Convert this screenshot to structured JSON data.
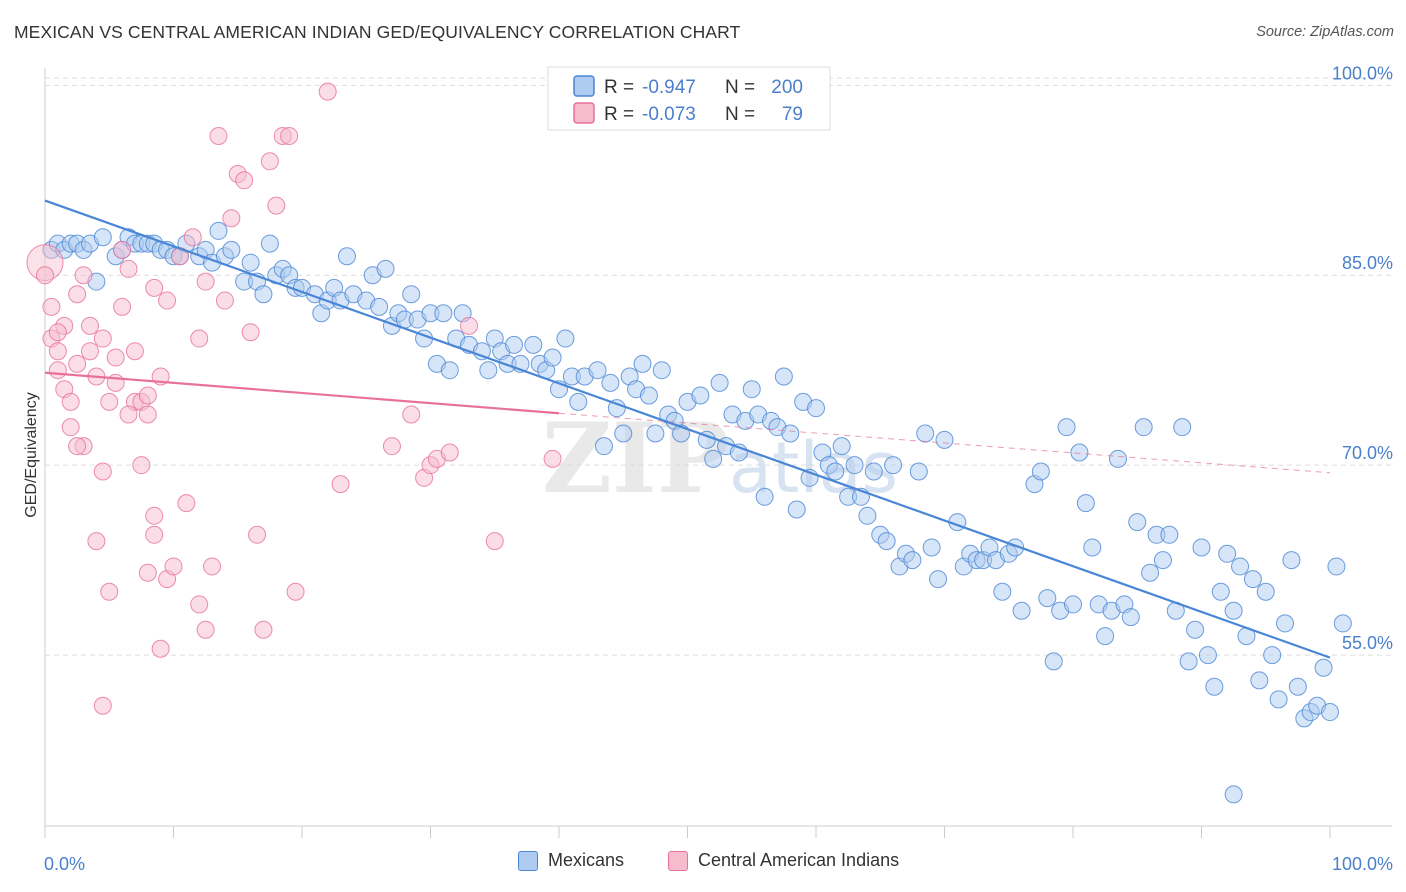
{
  "title": "MEXICAN VS CENTRAL AMERICAN INDIAN GED/EQUIVALENCY CORRELATION CHART",
  "source": "Source: ZipAtlas.com",
  "watermark": "ZIPatlas",
  "colors": {
    "blue": "#4a86d6",
    "blue_fill": "#aecbf0",
    "pink": "#e8719a",
    "pink_fill": "#f6bccd",
    "axis_text": "#4a7fcb",
    "grid": "#dddddd"
  },
  "legend_top": [
    {
      "series": "Mexicans",
      "r_label": "R =",
      "r_value": "-0.947",
      "n_label": "N =",
      "n_value": "200"
    },
    {
      "series": "Central American Indians",
      "r_label": "R =",
      "r_value": "-0.073",
      "n_label": "N =",
      "n_value": "79"
    }
  ],
  "chart_data": {
    "type": "scatter",
    "title": "MEXICAN VS CENTRAL AMERICAN INDIAN GED/EQUIVALENCY CORRELATION CHART",
    "xlabel": "",
    "ylabel": "GED/Equivalency",
    "xlim": [
      0,
      100
    ],
    "ylim": [
      41.5,
      102
    ],
    "x_tick_labels": [
      "0.0%",
      "100.0%"
    ],
    "y_ticks": [
      55,
      70,
      85,
      100
    ],
    "y_tick_labels": [
      "55.0%",
      "70.0%",
      "85.0%",
      "100.0%"
    ],
    "grid": "horizontal dashed",
    "legend_placement": "top-center and bottom",
    "series": [
      {
        "name": "Mexicans",
        "color": "#4a86d6",
        "trend": {
          "x": [
            0,
            100
          ],
          "y": [
            90.9,
            54.8
          ]
        },
        "points": [
          [
            0.5,
            87
          ],
          [
            1,
            87.5
          ],
          [
            1.5,
            87
          ],
          [
            2,
            87.5
          ],
          [
            2.5,
            87.5
          ],
          [
            3,
            87
          ],
          [
            3.5,
            87.5
          ],
          [
            4,
            84.5
          ],
          [
            4.5,
            88
          ],
          [
            5.5,
            86.5
          ],
          [
            6,
            87
          ],
          [
            6.5,
            88
          ],
          [
            7,
            87.5
          ],
          [
            7.5,
            87.5
          ],
          [
            8,
            87.5
          ],
          [
            8.5,
            87.5
          ],
          [
            9,
            87
          ],
          [
            9.5,
            87
          ],
          [
            10,
            86.5
          ],
          [
            10.5,
            86.5
          ],
          [
            11,
            87.5
          ],
          [
            12,
            86.5
          ],
          [
            12.5,
            87
          ],
          [
            13,
            86
          ],
          [
            13.5,
            88.5
          ],
          [
            14,
            86.5
          ],
          [
            14.5,
            87
          ],
          [
            15.5,
            84.5
          ],
          [
            16,
            86
          ],
          [
            16.5,
            84.5
          ],
          [
            17,
            83.5
          ],
          [
            17.5,
            87.5
          ],
          [
            18,
            85
          ],
          [
            18.5,
            85.5
          ],
          [
            19,
            85
          ],
          [
            19.5,
            84
          ],
          [
            20,
            84
          ],
          [
            21,
            83.5
          ],
          [
            21.5,
            82
          ],
          [
            22,
            83
          ],
          [
            22.5,
            84
          ],
          [
            23,
            83
          ],
          [
            23.5,
            86.5
          ],
          [
            24,
            83.5
          ],
          [
            25,
            83
          ],
          [
            25.5,
            85
          ],
          [
            26,
            82.5
          ],
          [
            26.5,
            85.5
          ],
          [
            27,
            81
          ],
          [
            27.5,
            82
          ],
          [
            28,
            81.5
          ],
          [
            28.5,
            83.5
          ],
          [
            29,
            81.5
          ],
          [
            29.5,
            80
          ],
          [
            30,
            82
          ],
          [
            30.5,
            78
          ],
          [
            31,
            82
          ],
          [
            31.5,
            77.5
          ],
          [
            32,
            80
          ],
          [
            32.5,
            82
          ],
          [
            33,
            79.5
          ],
          [
            34,
            79
          ],
          [
            34.5,
            77.5
          ],
          [
            35,
            80
          ],
          [
            35.5,
            79
          ],
          [
            36,
            78
          ],
          [
            36.5,
            79.5
          ],
          [
            37,
            78
          ],
          [
            38,
            79.5
          ],
          [
            38.5,
            78
          ],
          [
            39,
            77.5
          ],
          [
            39.5,
            78.5
          ],
          [
            40,
            76
          ],
          [
            40.5,
            80
          ],
          [
            41,
            77
          ],
          [
            41.5,
            75
          ],
          [
            42,
            77
          ],
          [
            43,
            77.5
          ],
          [
            43.5,
            71.5
          ],
          [
            44,
            76.5
          ],
          [
            44.5,
            74.5
          ],
          [
            45,
            72.5
          ],
          [
            45.5,
            77
          ],
          [
            46,
            76
          ],
          [
            46.5,
            78
          ],
          [
            47,
            75.5
          ],
          [
            47.5,
            72.5
          ],
          [
            48,
            77.5
          ],
          [
            48.5,
            74
          ],
          [
            49,
            73.5
          ],
          [
            49.5,
            72.5
          ],
          [
            50,
            75
          ],
          [
            51,
            75.5
          ],
          [
            51.5,
            72
          ],
          [
            52,
            70.5
          ],
          [
            52.5,
            76.5
          ],
          [
            53,
            71.5
          ],
          [
            53.5,
            74
          ],
          [
            54,
            71
          ],
          [
            54.5,
            73.5
          ],
          [
            55,
            76
          ],
          [
            55.5,
            74
          ],
          [
            56,
            67.5
          ],
          [
            56.5,
            73.5
          ],
          [
            57,
            73
          ],
          [
            57.5,
            77
          ],
          [
            58,
            72.5
          ],
          [
            58.5,
            66.5
          ],
          [
            59,
            75
          ],
          [
            59.5,
            69
          ],
          [
            60,
            74.5
          ],
          [
            60.5,
            71
          ],
          [
            61,
            70
          ],
          [
            61.5,
            69.5
          ],
          [
            62,
            71.5
          ],
          [
            62.5,
            67.5
          ],
          [
            63,
            70
          ],
          [
            63.5,
            67.5
          ],
          [
            64,
            66
          ],
          [
            64.5,
            69.5
          ],
          [
            65,
            64.5
          ],
          [
            65.5,
            64
          ],
          [
            66,
            70
          ],
          [
            66.5,
            62
          ],
          [
            67,
            63
          ],
          [
            67.5,
            62.5
          ],
          [
            68,
            69.5
          ],
          [
            68.5,
            72.5
          ],
          [
            69,
            63.5
          ],
          [
            69.5,
            61
          ],
          [
            70,
            72
          ],
          [
            71,
            65.5
          ],
          [
            71.5,
            62
          ],
          [
            72,
            63
          ],
          [
            72.5,
            62.5
          ],
          [
            73,
            62.5
          ],
          [
            73.5,
            63.5
          ],
          [
            74,
            62.5
          ],
          [
            74.5,
            60
          ],
          [
            75,
            63
          ],
          [
            75.5,
            63.5
          ],
          [
            76,
            58.5
          ],
          [
            77,
            68.5
          ],
          [
            77.5,
            69.5
          ],
          [
            78,
            59.5
          ],
          [
            78.5,
            54.5
          ],
          [
            79,
            58.5
          ],
          [
            79.5,
            73
          ],
          [
            80,
            59
          ],
          [
            80.5,
            71
          ],
          [
            81,
            67
          ],
          [
            81.5,
            63.5
          ],
          [
            82,
            59
          ],
          [
            82.5,
            56.5
          ],
          [
            83,
            58.5
          ],
          [
            83.5,
            70.5
          ],
          [
            84,
            59
          ],
          [
            84.5,
            58
          ],
          [
            85,
            65.5
          ],
          [
            85.5,
            73
          ],
          [
            86,
            61.5
          ],
          [
            86.5,
            64.5
          ],
          [
            87,
            62.5
          ],
          [
            87.5,
            64.5
          ],
          [
            88,
            58.5
          ],
          [
            88.5,
            73
          ],
          [
            89,
            54.5
          ],
          [
            89.5,
            57
          ],
          [
            90,
            63.5
          ],
          [
            90.5,
            55
          ],
          [
            91,
            52.5
          ],
          [
            91.5,
            60
          ],
          [
            92,
            63
          ],
          [
            92.5,
            58.5
          ],
          [
            93,
            62
          ],
          [
            93.5,
            56.5
          ],
          [
            94,
            61
          ],
          [
            94.5,
            53
          ],
          [
            95,
            60
          ],
          [
            95.5,
            55
          ],
          [
            96,
            51.5
          ],
          [
            96.5,
            57.5
          ],
          [
            97,
            62.5
          ],
          [
            97.5,
            52.5
          ],
          [
            98,
            50
          ],
          [
            98.5,
            50.5
          ],
          [
            99,
            51
          ],
          [
            99.5,
            54
          ],
          [
            100,
            50.5
          ],
          [
            100.5,
            62
          ],
          [
            101,
            57.5
          ],
          [
            92.5,
            44
          ]
        ]
      },
      {
        "name": "Central American Indians",
        "color": "#e8719a",
        "trend": {
          "x": [
            0,
            40
          ],
          "y": [
            77.3,
            74.1
          ],
          "dashed_to": {
            "x": 100,
            "y": 69.4
          }
        },
        "points": [
          [
            0,
            86
          ],
          [
            0.5,
            82.5
          ],
          [
            0.5,
            80
          ],
          [
            1,
            79
          ],
          [
            1,
            77.5
          ],
          [
            1.5,
            81
          ],
          [
            1.5,
            76
          ],
          [
            2,
            75
          ],
          [
            2,
            73
          ],
          [
            2.5,
            83.5
          ],
          [
            2.5,
            78
          ],
          [
            3,
            85
          ],
          [
            3,
            71.5
          ],
          [
            3.5,
            81
          ],
          [
            3.5,
            79
          ],
          [
            4,
            77
          ],
          [
            4,
            64
          ],
          [
            4.5,
            80
          ],
          [
            4.5,
            69.5
          ],
          [
            5,
            75
          ],
          [
            5,
            60
          ],
          [
            5.5,
            76.5
          ],
          [
            5.5,
            78.5
          ],
          [
            6,
            82.5
          ],
          [
            6,
            87
          ],
          [
            6.5,
            85.5
          ],
          [
            7,
            75
          ],
          [
            7,
            79
          ],
          [
            7.5,
            70
          ],
          [
            7.5,
            75
          ],
          [
            8,
            75.5
          ],
          [
            8,
            61.5
          ],
          [
            8.5,
            84
          ],
          [
            8.5,
            64.5
          ],
          [
            9,
            77
          ],
          [
            9,
            55.5
          ],
          [
            9.5,
            83
          ],
          [
            9.5,
            61
          ],
          [
            10,
            62
          ],
          [
            10.5,
            86.5
          ],
          [
            11,
            67
          ],
          [
            11.5,
            88
          ],
          [
            12,
            80
          ],
          [
            12.5,
            84.5
          ],
          [
            12.5,
            57
          ],
          [
            13,
            62
          ],
          [
            13.5,
            96
          ],
          [
            14,
            83
          ],
          [
            14.5,
            89.5
          ],
          [
            15,
            93
          ],
          [
            15.5,
            92.5
          ],
          [
            16,
            80.5
          ],
          [
            16.5,
            64.5
          ],
          [
            17,
            57
          ],
          [
            17.5,
            94
          ],
          [
            18,
            90.5
          ],
          [
            18.5,
            96
          ],
          [
            19,
            96
          ],
          [
            19.5,
            60
          ],
          [
            22,
            99.5
          ],
          [
            23,
            68.5
          ],
          [
            27,
            71.5
          ],
          [
            28.5,
            74
          ],
          [
            29.5,
            69
          ],
          [
            30,
            70
          ],
          [
            30.5,
            70.5
          ],
          [
            31.5,
            71
          ],
          [
            33,
            81
          ],
          [
            35,
            64
          ],
          [
            39.5,
            70.5
          ],
          [
            4.5,
            51
          ],
          [
            0,
            85
          ],
          [
            1,
            80.5
          ],
          [
            2.5,
            71.5
          ],
          [
            6.5,
            74
          ],
          [
            8,
            74
          ],
          [
            8.5,
            66
          ],
          [
            12,
            59
          ]
        ]
      }
    ]
  }
}
